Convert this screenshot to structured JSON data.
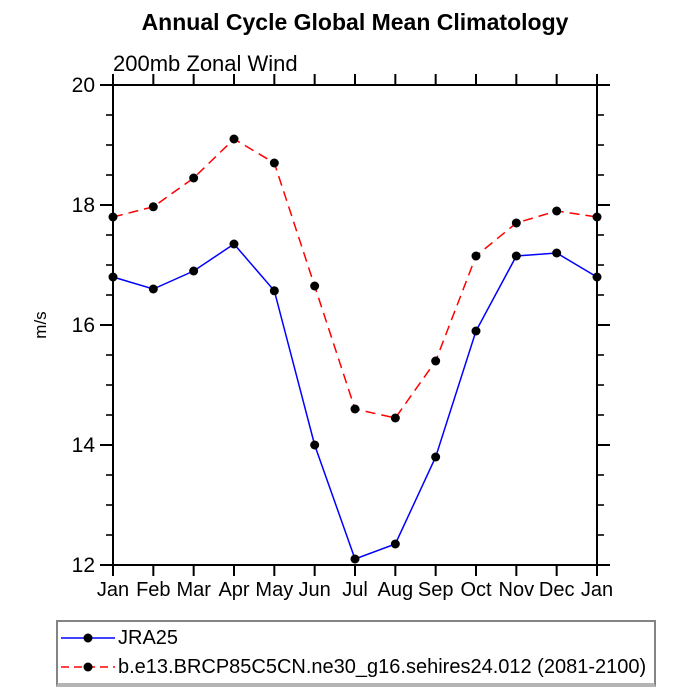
{
  "chart_data": {
    "type": "line",
    "title": "Annual Cycle Global Mean Climatology",
    "subtitle": "200mb Zonal Wind",
    "xlabel": "",
    "ylabel": "m/s",
    "categories": [
      "Jan",
      "Feb",
      "Mar",
      "Apr",
      "May",
      "Jun",
      "Jul",
      "Aug",
      "Sep",
      "Oct",
      "Nov",
      "Dec",
      "Jan"
    ],
    "ylim": [
      12,
      20
    ],
    "yticks": [
      12,
      14,
      16,
      18,
      20
    ],
    "y_minor_interval": 0.5,
    "grid": false,
    "legend_position": "bottom",
    "series": [
      {
        "name": "JRA25",
        "color": "#0000ff",
        "line_style": "solid",
        "marker": "filled-circle",
        "marker_color": "#000000",
        "values": [
          16.8,
          16.6,
          16.9,
          17.35,
          16.57,
          14.0,
          12.1,
          12.35,
          13.8,
          15.9,
          17.15,
          17.2,
          16.8
        ]
      },
      {
        "name": "b.e13.BRCP85C5CN.ne30_g16.sehires24.012 (2081-2100)",
        "color": "#ff0000",
        "line_style": "dashed",
        "marker": "filled-circle",
        "marker_color": "#000000",
        "values": [
          17.8,
          17.97,
          18.45,
          19.1,
          18.7,
          16.65,
          14.6,
          14.45,
          15.4,
          17.15,
          17.7,
          17.9,
          17.8
        ]
      }
    ]
  },
  "colors": {
    "axis": "#000000",
    "background": "#ffffff",
    "legend_border": "#848484"
  }
}
